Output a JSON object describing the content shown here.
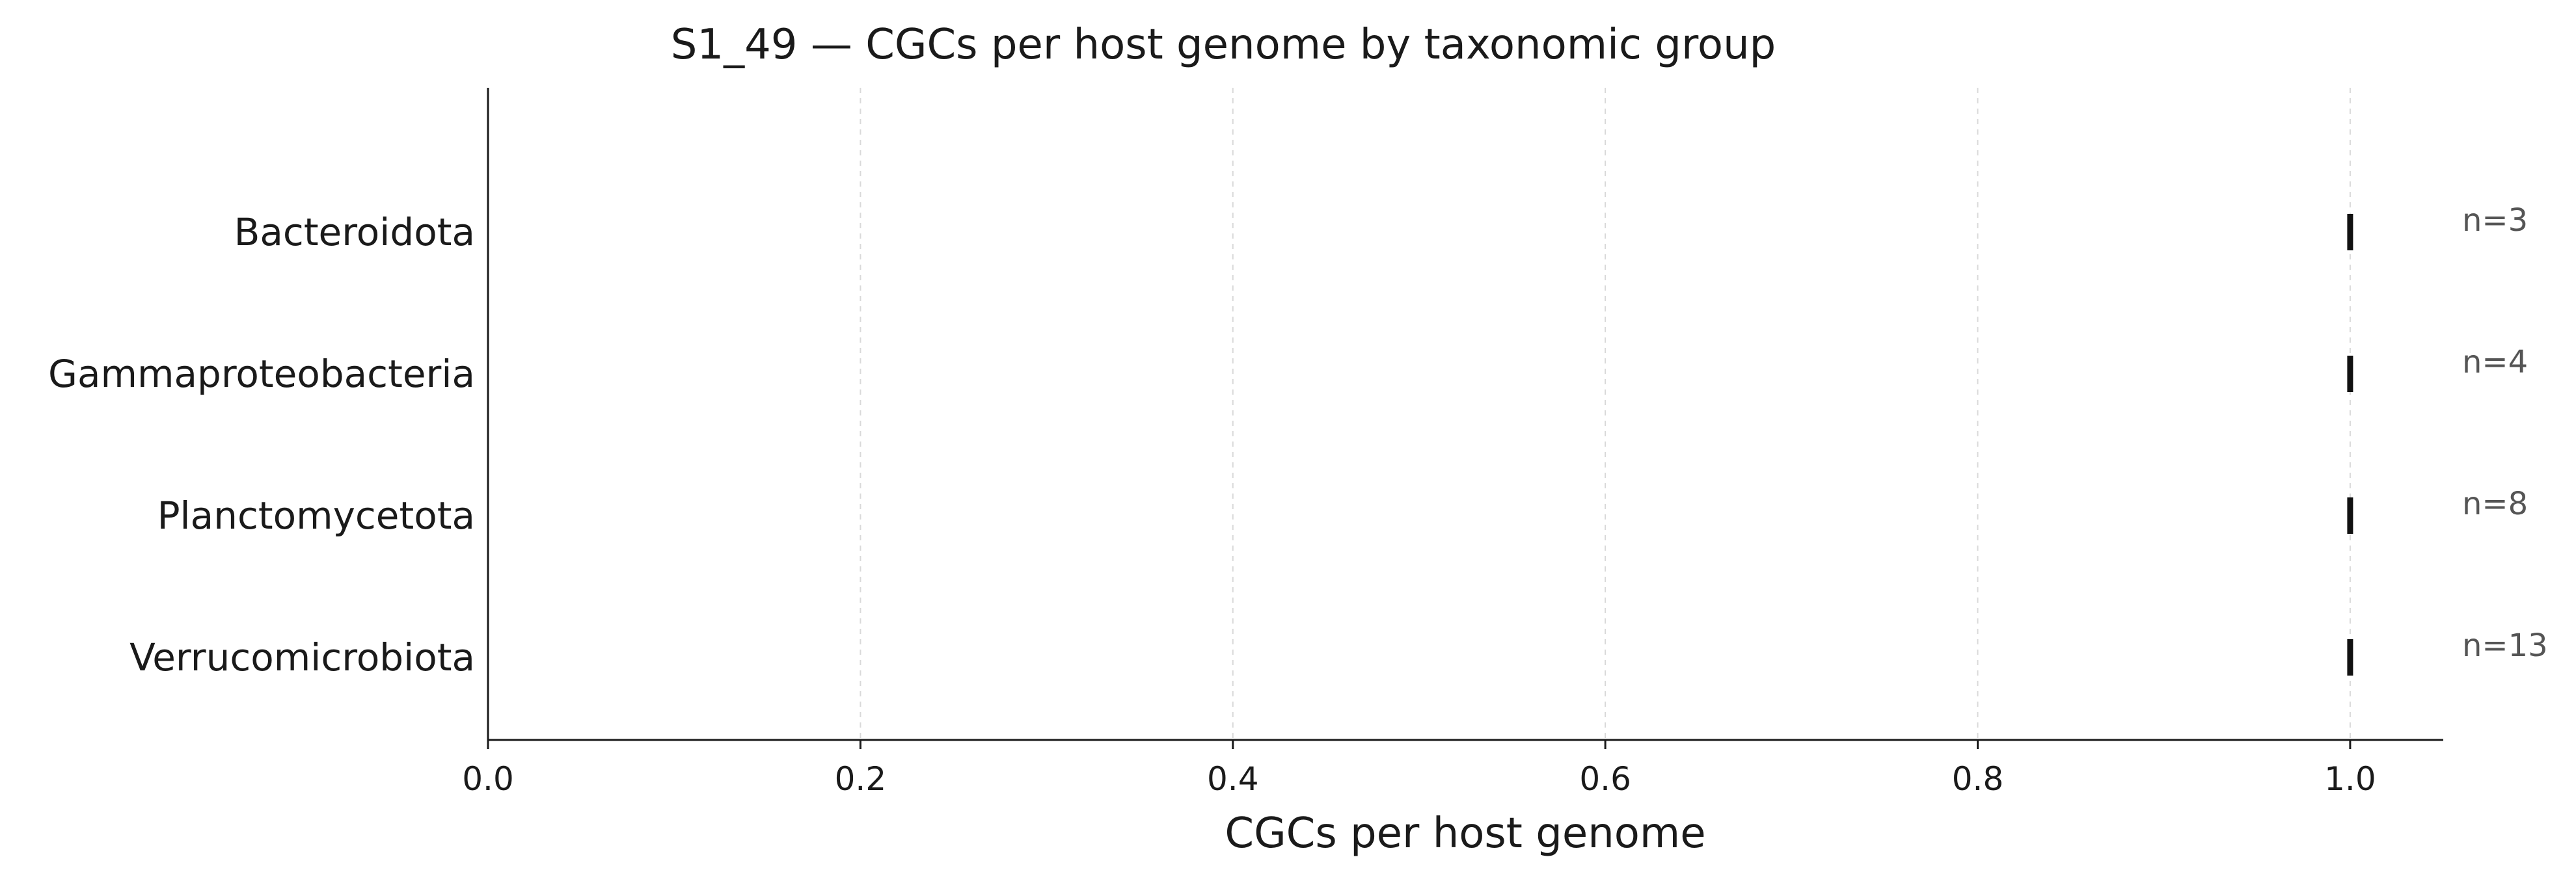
{
  "chart_data": {
    "type": "scatter",
    "title": "S1_49 — CGCs per host genome by taxonomic group",
    "xlabel": "CGCs per host genome",
    "ylabel": "",
    "xlim": [
      0,
      1.05
    ],
    "xticks": [
      0.0,
      0.2,
      0.4,
      0.6,
      0.8,
      1.0
    ],
    "xtick_labels": [
      "0.0",
      "0.2",
      "0.4",
      "0.6",
      "0.8",
      "1.0"
    ],
    "grid": "vertical dashed",
    "categories": [
      "Bacteroidota",
      "Gammaproteobacteria",
      "Planctomycetota",
      "Verrucomicrobiota"
    ],
    "values": [
      1.0,
      1.0,
      1.0,
      1.0
    ],
    "counts": [
      "n=3",
      "n=4",
      "n=8",
      "n=13"
    ],
    "marker_color": "#111111"
  }
}
